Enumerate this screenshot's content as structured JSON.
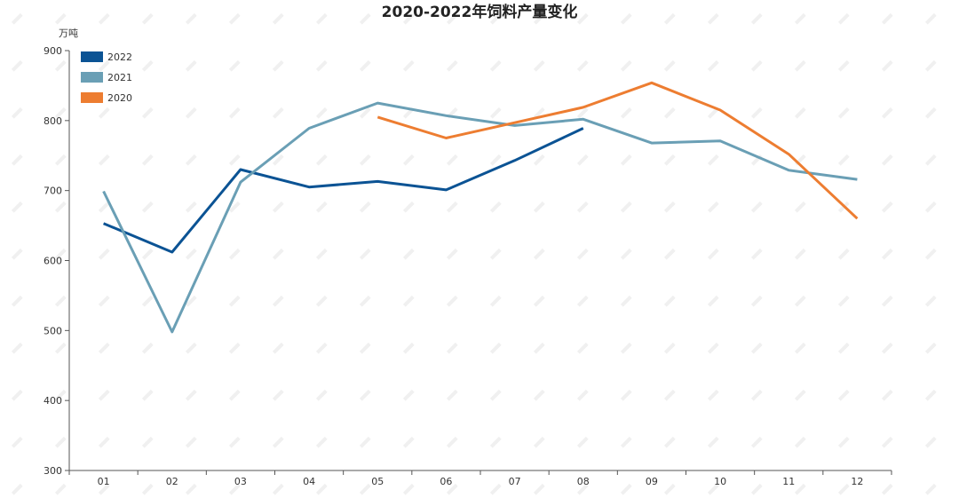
{
  "chart_data": {
    "type": "line",
    "title": "2020-2022年饲料产量变化",
    "ylabel": "万吨",
    "xlabel": "",
    "categories": [
      "01",
      "02",
      "03",
      "04",
      "05",
      "06",
      "07",
      "08",
      "09",
      "10",
      "11",
      "12"
    ],
    "ylim": [
      300,
      900
    ],
    "yticks": [
      300,
      400,
      500,
      600,
      700,
      800,
      900
    ],
    "grid": false,
    "legend_position": "top-left",
    "series": [
      {
        "name": "2022",
        "color": "#0B5394",
        "values": [
          653,
          612,
          730,
          705,
          713,
          701,
          743,
          789,
          null,
          null,
          null,
          null
        ]
      },
      {
        "name": "2021",
        "color": "#6A9FB5",
        "values": [
          699,
          498,
          712,
          789,
          825,
          807,
          793,
          802,
          768,
          771,
          729,
          716
        ]
      },
      {
        "name": "2020",
        "color": "#ED7D31",
        "values": [
          null,
          null,
          null,
          null,
          805,
          775,
          797,
          819,
          854,
          815,
          752,
          660
        ]
      }
    ]
  }
}
